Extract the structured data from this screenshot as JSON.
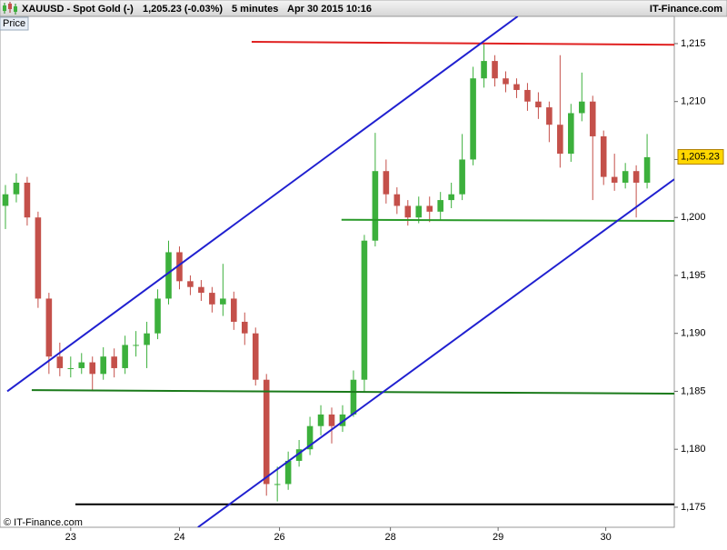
{
  "header": {
    "symbol": "XAUUSD - Spot Gold (-)",
    "quote": "1,205.23 (-0.03%)",
    "interval": "5 minutes",
    "timestamp": "Apr 30 2015 10:16",
    "brand": "IT-Finance.com"
  },
  "chart_data": {
    "type": "candlestick",
    "panel_label": "Price",
    "footer": "© IT-Finance.com",
    "up_color": "#3cb03c",
    "down_color": "#c4504a",
    "open": [
      1201,
      1202,
      1203,
      1200,
      1193,
      1188,
      1187,
      1187,
      1187.5,
      1186.5,
      1188,
      1187,
      1189,
      1189,
      1190,
      1193,
      1197,
      1194.5,
      1194,
      1193.5,
      1192.5,
      1193,
      1191,
      1190,
      1186,
      1177,
      1177,
      1179,
      1180,
      1182,
      1183,
      1182,
      1183,
      1186,
      1198,
      1204,
      1202,
      1201,
      1200,
      1201,
      1200.5,
      1201.5,
      1202,
      1205,
      1212,
      1213.5,
      1212,
      1211.5,
      1211,
      1210,
      1209.5,
      1208,
      1205.5,
      1209,
      1210,
      1207,
      1203.5,
      1203,
      1204,
      1203
    ],
    "high": [
      1202.8,
      1203.8,
      1203.5,
      1200.5,
      1193.5,
      1189.2,
      1188,
      1188.3,
      1188,
      1188.8,
      1188.7,
      1189.8,
      1190.2,
      1191,
      1193.8,
      1198,
      1197.5,
      1195,
      1194.6,
      1194,
      1196,
      1193.6,
      1191.8,
      1190.5,
      1186.5,
      1178.5,
      1179.8,
      1180.8,
      1182.8,
      1183.8,
      1183.6,
      1183.8,
      1186.8,
      1198.5,
      1207.3,
      1205,
      1202.6,
      1201.5,
      1201.8,
      1201.8,
      1202.2,
      1203,
      1207.2,
      1213,
      1215,
      1214,
      1212.6,
      1212,
      1211.6,
      1210.8,
      1210,
      1214,
      1209.8,
      1212.5,
      1210.5,
      1207.5,
      1205.5,
      1204.7,
      1204.5,
      1207.2
    ],
    "low": [
      1199,
      1201.3,
      1199.3,
      1192.2,
      1186.5,
      1186.3,
      1186.2,
      1186.5,
      1185,
      1186,
      1186.2,
      1186.5,
      1188,
      1187,
      1189.5,
      1192.5,
      1193.8,
      1193.3,
      1192.8,
      1191.8,
      1191.5,
      1190.3,
      1189,
      1185.5,
      1176,
      1175.5,
      1176.5,
      1178.5,
      1179.5,
      1181.2,
      1180.5,
      1181.5,
      1182.8,
      1185,
      1197.5,
      1201.2,
      1200.3,
      1199.3,
      1199.5,
      1199.6,
      1199.8,
      1200.8,
      1201.5,
      1204.5,
      1211.2,
      1211.3,
      1210.8,
      1210.3,
      1209.2,
      1208.5,
      1206.5,
      1204.3,
      1204.8,
      1208.3,
      1201.5,
      1202.8,
      1202.3,
      1202.5,
      1200,
      1202.5
    ],
    "close": [
      1202,
      1203,
      1200,
      1193,
      1188,
      1187,
      1187,
      1187.5,
      1186.5,
      1188,
      1187,
      1189,
      1189,
      1190,
      1193,
      1197,
      1194.5,
      1194,
      1193.5,
      1192.5,
      1193,
      1191,
      1190,
      1186,
      1177,
      1177,
      1179,
      1180,
      1182,
      1183,
      1182,
      1183,
      1186,
      1198,
      1204,
      1202,
      1201,
      1200,
      1201,
      1200.5,
      1201.5,
      1202,
      1205,
      1212,
      1213.5,
      1212,
      1211.5,
      1211,
      1210,
      1209.5,
      1208,
      1205.5,
      1209,
      1210,
      1207,
      1203.5,
      1203,
      1204,
      1203,
      1205.2
    ],
    "xlim": [
      0,
      62
    ],
    "xticks": [
      {
        "value": 6.5,
        "label": "23"
      },
      {
        "value": 16.5,
        "label": "24"
      },
      {
        "value": 25.7,
        "label": "26"
      },
      {
        "value": 35.9,
        "label": "28"
      },
      {
        "value": 45.8,
        "label": "29"
      },
      {
        "value": 55.7,
        "label": "30"
      }
    ],
    "ylim": [
      1173.27,
      1217.35
    ],
    "yticks": [
      {
        "value": 1175,
        "label": "1,175"
      },
      {
        "value": 1180,
        "label": "1,180"
      },
      {
        "value": 1185,
        "label": "1,185"
      },
      {
        "value": 1190,
        "label": "1,190"
      },
      {
        "value": 1195,
        "label": "1,195"
      },
      {
        "value": 1200,
        "label": "1,200"
      },
      {
        "value": 1205,
        "label": "1,205"
      },
      {
        "value": 1210,
        "label": "1,210"
      },
      {
        "value": 1215,
        "label": "1,215"
      }
    ],
    "last_price": {
      "value": 1205.23,
      "label": "1,205.23"
    },
    "lines": [
      {
        "color": "#e02020",
        "x1": 23.14,
        "y1": 1215.15,
        "x2": 62,
        "y2": 1214.9
      },
      {
        "color": "#2a9a2a",
        "x1": 31.4,
        "y1": 1199.8,
        "x2": 62,
        "y2": 1199.7
      },
      {
        "color": "#1a7a1a",
        "x1": 2.92,
        "y1": 1185.1,
        "x2": 62,
        "y2": 1184.8
      },
      {
        "color": "#000000",
        "x1": 6.93,
        "y1": 1175.25,
        "x2": 62,
        "y2": 1175.25
      },
      {
        "color": "#2020d0",
        "x1": 0.67,
        "y1": 1185.0,
        "x2": 47.6,
        "y2": 1217.35
      },
      {
        "color": "#2020d0",
        "x1": 18.2,
        "y1": 1173.27,
        "x2": 62,
        "y2": 1203.3
      }
    ]
  }
}
